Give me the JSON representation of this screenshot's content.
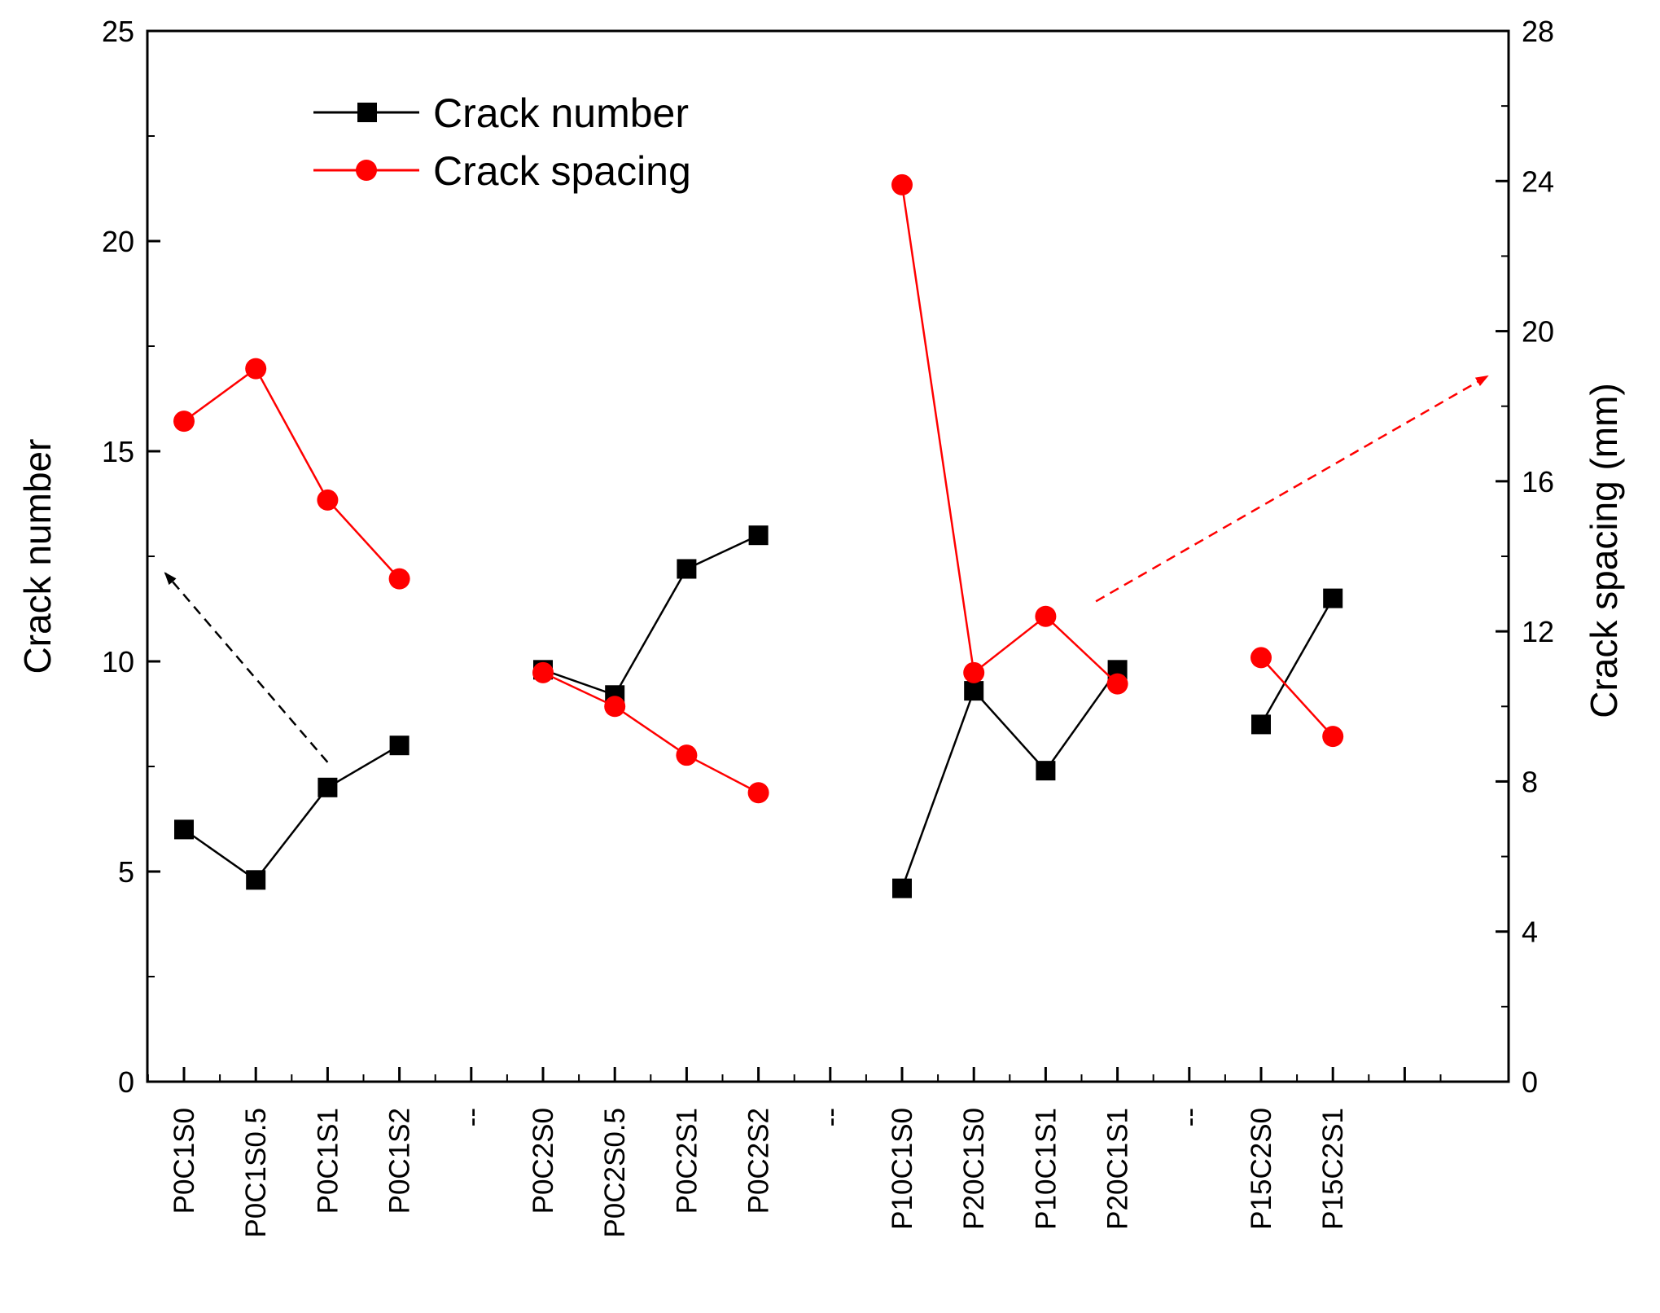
{
  "chart_data": {
    "type": "line",
    "categories": [
      "P0C1S0",
      "P0C1S0.5",
      "P0C1S1",
      "P0C1S2",
      "--",
      "P0C2S0",
      "P0C2S0.5",
      "P0C2S1",
      "P0C2S2",
      "--",
      "P10C1S0",
      "P20C1S0",
      "P10C1S1",
      "P20C1S1",
      "--",
      "P15C2S0",
      "P15C2S1"
    ],
    "groups": [
      [
        0,
        1,
        2,
        3
      ],
      [
        5,
        6,
        7,
        8
      ],
      [
        10,
        11,
        12,
        13
      ],
      [
        15,
        16
      ]
    ],
    "series": [
      {
        "name": "Crack number",
        "axis": "left",
        "color": "#000000",
        "marker": "square",
        "values": [
          6,
          4.8,
          7,
          8,
          null,
          9.8,
          9.2,
          12.2,
          13,
          null,
          4.6,
          9.3,
          7.4,
          9.8,
          null,
          8.5,
          11.5
        ]
      },
      {
        "name": "Crack spacing",
        "axis": "right",
        "color": "#ff0000",
        "marker": "circle",
        "values": [
          17.6,
          19,
          15.5,
          13.4,
          null,
          10.9,
          10,
          8.7,
          7.7,
          null,
          23.9,
          10.9,
          12.4,
          10.6,
          null,
          11.3,
          9.2
        ]
      }
    ],
    "left_axis": {
      "label": "Crack number",
      "ylim": [
        0,
        25
      ],
      "ticks": [
        0,
        5,
        10,
        15,
        20,
        25
      ]
    },
    "right_axis": {
      "label": "Crack spacing (mm)",
      "ylim": [
        0,
        28
      ],
      "ticks": [
        0,
        4,
        8,
        12,
        16,
        20,
        24,
        28
      ]
    },
    "annotations": [
      {
        "type": "dashed-arrow",
        "color": "#000000",
        "from": {
          "category": 2,
          "axis": "left",
          "value": 7.6
        },
        "to": "left axis (value 12.1)"
      },
      {
        "type": "dashed-arrow",
        "color": "#ff0000",
        "from": {
          "category": 12.7,
          "axis": "right",
          "value": 12.8
        },
        "to": "right axis (value 18.8)"
      }
    ],
    "legend_position": "top-left"
  }
}
